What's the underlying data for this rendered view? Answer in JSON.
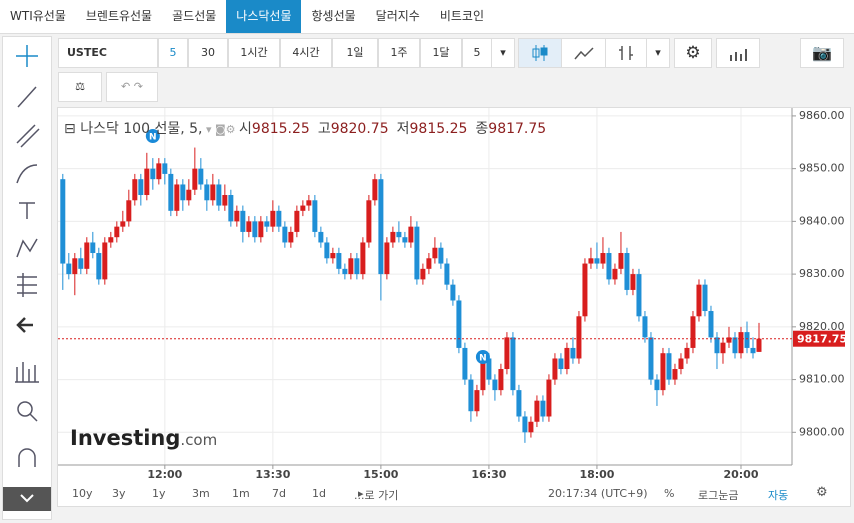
{
  "tabs": [
    "WTI유선물",
    "브렌트유선물",
    "골드선물",
    "나스닥선물",
    "항셍선물",
    "달러지수",
    "비트코인"
  ],
  "toolbar": {
    "symbol": "USTEC",
    "intervals": [
      "5",
      "30",
      "1시간",
      "4시간",
      "1일",
      "1주",
      "1달"
    ],
    "interval_select": "5"
  },
  "chart_data": {
    "type": "candlestick",
    "title": "나스닥 100 선물, 5,",
    "ohlc_labels": [
      "시",
      "고",
      "저",
      "종"
    ],
    "logo": [
      "Investing",
      ".com"
    ],
    "up_color": "#d81e1e",
    "down_color": "#1f8fd6",
    "grid": true,
    "xlim": [
      631,
      1242.5
    ],
    "xticks": [
      {
        "value": 720,
        "label": "12:00"
      },
      {
        "value": 810,
        "label": "13:30"
      },
      {
        "value": 900,
        "label": "15:00"
      },
      {
        "value": 990,
        "label": "16:30"
      },
      {
        "value": 1080,
        "label": "18:00"
      },
      {
        "value": 1200,
        "label": "20:00"
      }
    ],
    "ylim": [
      9793.8,
      9861.5
    ],
    "yticks": [
      {
        "value": 9800,
        "label": "9800.00"
      },
      {
        "value": 9810,
        "label": "9810.00"
      },
      {
        "value": 9820,
        "label": "9820.00"
      },
      {
        "value": 9830,
        "label": "9830.00"
      },
      {
        "value": 9840,
        "label": "9840.00"
      },
      {
        "value": 9850,
        "label": "9850.00"
      },
      {
        "value": 9860,
        "label": "9860.00"
      }
    ],
    "x": [
      635,
      640,
      645,
      650,
      655,
      660,
      665,
      670,
      675,
      680,
      685,
      690,
      695,
      700,
      705,
      710,
      715,
      720,
      725,
      730,
      735,
      740,
      745,
      750,
      755,
      760,
      765,
      770,
      775,
      780,
      785,
      790,
      795,
      800,
      805,
      810,
      815,
      820,
      825,
      830,
      835,
      840,
      845,
      850,
      855,
      860,
      865,
      870,
      875,
      880,
      885,
      890,
      895,
      900,
      905,
      910,
      915,
      920,
      925,
      930,
      935,
      940,
      945,
      950,
      955,
      960,
      965,
      970,
      975,
      980,
      985,
      990,
      995,
      1000,
      1005,
      1010,
      1015,
      1020,
      1025,
      1030,
      1035,
      1040,
      1045,
      1050,
      1055,
      1060,
      1065,
      1070,
      1075,
      1080,
      1085,
      1090,
      1095,
      1100,
      1105,
      1110,
      1115,
      1120,
      1125,
      1130,
      1135,
      1140,
      1145,
      1150,
      1155,
      1160,
      1165,
      1170,
      1175,
      1180,
      1185,
      1190,
      1195,
      1200,
      1205,
      1210,
      1215
    ],
    "candles": [
      [
        9848,
        9849,
        9827,
        9832
      ],
      [
        9832,
        9834,
        9829,
        9830
      ],
      [
        9830,
        9834,
        9826,
        9833
      ],
      [
        9833,
        9835,
        9830,
        9831
      ],
      [
        9831,
        9837,
        9830,
        9836
      ],
      [
        9836,
        9838,
        9833,
        9834
      ],
      [
        9834,
        9835,
        9828,
        9829
      ],
      [
        9829,
        9837,
        9828,
        9836
      ],
      [
        9836,
        9838,
        9835,
        9837
      ],
      [
        9837,
        9840,
        9836,
        9839
      ],
      [
        9839,
        9842,
        9838,
        9840
      ],
      [
        9840,
        9846,
        9839,
        9844
      ],
      [
        9844,
        9849,
        9843,
        9848
      ],
      [
        9848,
        9849,
        9843,
        9845
      ],
      [
        9845,
        9853,
        9844,
        9850
      ],
      [
        9850,
        9852,
        9846,
        9848
      ],
      [
        9848,
        9852,
        9847,
        9851
      ],
      [
        9851,
        9852,
        9847,
        9849
      ],
      [
        9849,
        9850,
        9841,
        9842
      ],
      [
        9842,
        9848,
        9841,
        9847
      ],
      [
        9847,
        9848,
        9842,
        9844
      ],
      [
        9844,
        9848,
        9843,
        9846
      ],
      [
        9846,
        9854,
        9845,
        9850
      ],
      [
        9850,
        9852,
        9846,
        9847
      ],
      [
        9847,
        9848,
        9842,
        9844
      ],
      [
        9844,
        9849,
        9843,
        9847
      ],
      [
        9847,
        9848,
        9842,
        9843
      ],
      [
        9843,
        9847,
        9842,
        9845
      ],
      [
        9845,
        9846,
        9839,
        9840
      ],
      [
        9840,
        9843,
        9839,
        9842
      ],
      [
        9842,
        9843,
        9836,
        9838
      ],
      [
        9838,
        9841,
        9837,
        9840
      ],
      [
        9840,
        9841,
        9836,
        9837
      ],
      [
        9837,
        9841,
        9836,
        9840
      ],
      [
        9840,
        9841,
        9838,
        9839
      ],
      [
        9839,
        9844,
        9838,
        9842
      ],
      [
        9842,
        9843,
        9838,
        9839
      ],
      [
        9839,
        9840,
        9835,
        9836
      ],
      [
        9836,
        9839,
        9835,
        9838
      ],
      [
        9838,
        9843,
        9837,
        9842
      ],
      [
        9842,
        9844,
        9841,
        9843
      ],
      [
        9843,
        9845,
        9842,
        9844
      ],
      [
        9844,
        9845,
        9837,
        9838
      ],
      [
        9838,
        9839,
        9835,
        9836
      ],
      [
        9836,
        9837,
        9832,
        9833
      ],
      [
        9833,
        9835,
        9832,
        9834
      ],
      [
        9834,
        9835,
        9830,
        9831
      ],
      [
        9831,
        9832,
        9829,
        9830
      ],
      [
        9830,
        9834,
        9829,
        9833
      ],
      [
        9833,
        9834,
        9829,
        9830
      ],
      [
        9830,
        9837,
        9829,
        9836
      ],
      [
        9836,
        9845,
        9835,
        9844
      ],
      [
        9844,
        9849,
        9843,
        9848
      ],
      [
        9848,
        9849,
        9825,
        9830
      ],
      [
        9830,
        9837,
        9829,
        9836
      ],
      [
        9836,
        9839,
        9835,
        9838
      ],
      [
        9838,
        9840,
        9836,
        9837
      ],
      [
        9837,
        9838,
        9835,
        9836
      ],
      [
        9836,
        9841,
        9835,
        9839
      ],
      [
        9839,
        9840,
        9828,
        9829
      ],
      [
        9829,
        9832,
        9828,
        9831
      ],
      [
        9831,
        9834,
        9830,
        9833
      ],
      [
        9833,
        9837,
        9832,
        9835
      ],
      [
        9835,
        9836,
        9831,
        9832
      ],
      [
        9832,
        9833,
        9827,
        9828
      ],
      [
        9828,
        9829,
        9824,
        9825
      ],
      [
        9825,
        9826,
        9815,
        9816
      ],
      [
        9816,
        9817,
        9809,
        9810
      ],
      [
        9810,
        9811,
        9802,
        9804
      ],
      [
        9804,
        9809,
        9803,
        9808
      ],
      [
        9808,
        9815,
        9807,
        9814
      ],
      [
        9814,
        9815,
        9809,
        9810
      ],
      [
        9810,
        9811,
        9806,
        9808
      ],
      [
        9808,
        9813,
        9807,
        9812
      ],
      [
        9812,
        9819,
        9811,
        9818
      ],
      [
        9818,
        9819,
        9807,
        9808
      ],
      [
        9808,
        9809,
        9802,
        9803
      ],
      [
        9803,
        9804,
        9798,
        9800
      ],
      [
        9800,
        9803,
        9799,
        9802
      ],
      [
        9802,
        9807,
        9801,
        9806
      ],
      [
        9806,
        9807,
        9802,
        9803
      ],
      [
        9803,
        9811,
        9802,
        9810
      ],
      [
        9810,
        9815,
        9809,
        9814
      ],
      [
        9814,
        9815,
        9811,
        9812
      ],
      [
        9812,
        9817,
        9811,
        9816
      ],
      [
        9816,
        9818,
        9813,
        9814
      ],
      [
        9814,
        9823,
        9813,
        9822
      ],
      [
        9822,
        9833,
        9821,
        9832
      ],
      [
        9832,
        9835,
        9831,
        9833
      ],
      [
        9833,
        9836,
        9831,
        9832
      ],
      [
        9832,
        9837,
        9831,
        9834
      ],
      [
        9834,
        9835,
        9828,
        9829
      ],
      [
        9829,
        9832,
        9828,
        9831
      ],
      [
        9831,
        9838,
        9830,
        9834
      ],
      [
        9834,
        9835,
        9826,
        9827
      ],
      [
        9827,
        9831,
        9826,
        9830
      ],
      [
        9830,
        9831,
        9821,
        9822
      ],
      [
        9822,
        9823,
        9817,
        9818
      ],
      [
        9818,
        9819,
        9809,
        9810
      ],
      [
        9810,
        9811,
        9805,
        9808
      ],
      [
        9808,
        9816,
        9807,
        9815
      ],
      [
        9815,
        9816,
        9809,
        9810
      ],
      [
        9810,
        9813,
        9809,
        9812
      ],
      [
        9812,
        9815,
        9811,
        9814
      ],
      [
        9814,
        9817,
        9813,
        9816
      ],
      [
        9816,
        9823,
        9815,
        9822
      ],
      [
        9822,
        9829,
        9821,
        9828
      ],
      [
        9828,
        9829,
        9822,
        9823
      ],
      [
        9823,
        9824,
        9817,
        9818
      ],
      [
        9818,
        9819,
        9812,
        9815
      ],
      [
        9815,
        9818,
        9813,
        9817
      ],
      [
        9817,
        9820,
        9816,
        9818
      ],
      [
        9818,
        9819,
        9814,
        9815
      ],
      [
        9815,
        9820,
        9814,
        9819
      ],
      [
        9819,
        9821,
        9815,
        9816
      ],
      [
        9816,
        9818,
        9814,
        9815
      ],
      [
        9815.25,
        9820.75,
        9815.25,
        9817.75
      ]
    ]
  },
  "bottom_bar": {
    "ranges": [
      "10y",
      "3y",
      "1y",
      "3m",
      "1m",
      "7d",
      "1d"
    ],
    "goto": "...로 가기",
    "clock": "20:17:34 (UTC+9)",
    "percent": "%",
    "log": "로그눈금",
    "auto": "자동"
  }
}
